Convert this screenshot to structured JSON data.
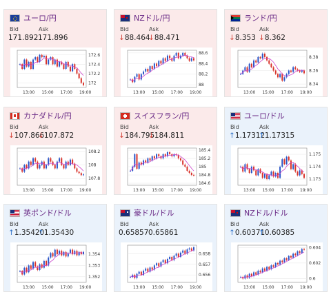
{
  "labels": {
    "bid": "Bid",
    "ask": "Ask"
  },
  "colors": {
    "up_candle": "#2a56c8",
    "down_candle": "#d8332b",
    "ma_line": "#cc44cc",
    "down_card": "#fbeaea",
    "up_card": "#eaf2fb"
  },
  "cards": [
    {
      "pair": "ユーロ/円",
      "flag": "eu-flag",
      "direction": "down",
      "bid_arrow": "",
      "bid": "171.892",
      "ask_arrow": "",
      "ask": "171.896",
      "chart_data": {
        "type": "candlestick",
        "yticks": [
          "172.6",
          "172.4",
          "172.2",
          "172"
        ],
        "ylim": [
          171.9,
          172.7
        ],
        "xticks": [
          "13:00",
          "15:00",
          "17:00",
          "19:00"
        ],
        "close": [
          172.4,
          172.3,
          172.5,
          172.35,
          172.45,
          172.3,
          172.5,
          172.55,
          172.45,
          172.6,
          172.55,
          172.58,
          172.4,
          172.5,
          172.55,
          172.4,
          172.5,
          172.35,
          172.45,
          172.4,
          172.3,
          172.45,
          172.35,
          172.25,
          172.4,
          172.3,
          172.2,
          172.1,
          172.0,
          171.95
        ]
      }
    },
    {
      "pair": "NZドル/円",
      "flag": "nz-flag",
      "direction": "down",
      "bid_arrow": "↓",
      "bid": "88.464",
      "ask_arrow": "↓",
      "ask": "88.471",
      "chart_data": {
        "type": "candlestick",
        "yticks": [
          "88.6",
          "88.4",
          "88.2",
          "88"
        ],
        "ylim": [
          87.95,
          88.65
        ],
        "xticks": [
          "13:00",
          "15:00",
          "17:00",
          "19:00"
        ],
        "close": [
          88.1,
          88.05,
          88.15,
          88.2,
          88.1,
          88.2,
          88.25,
          88.3,
          88.25,
          88.35,
          88.3,
          88.4,
          88.35,
          88.45,
          88.4,
          88.5,
          88.45,
          88.55,
          88.5,
          88.45,
          88.55,
          88.6,
          88.5,
          88.55,
          88.6,
          88.55,
          88.5,
          88.45,
          88.5,
          88.46
        ]
      }
    },
    {
      "pair": "ランド/円",
      "flag": "za-flag",
      "direction": "down",
      "bid_arrow": "↓",
      "bid": "8.353",
      "ask_arrow": "↓",
      "ask": "8.362",
      "chart_data": {
        "type": "candlestick",
        "yticks": [
          "8.38",
          "8.36",
          "8.34"
        ],
        "ylim": [
          8.335,
          8.39
        ],
        "xticks": [
          "13:00",
          "15:00",
          "17:00",
          "19:00"
        ],
        "close": [
          8.355,
          8.36,
          8.365,
          8.358,
          8.37,
          8.365,
          8.375,
          8.372,
          8.38,
          8.378,
          8.385,
          8.38,
          8.375,
          8.37,
          8.365,
          8.36,
          8.355,
          8.35,
          8.355,
          8.345,
          8.35,
          8.355,
          8.36,
          8.358,
          8.365,
          8.362,
          8.36,
          8.358,
          8.36,
          8.356
        ]
      }
    },
    {
      "pair": "カナダドル/円",
      "flag": "ca-flag",
      "direction": "down",
      "bid_arrow": "↓",
      "bid": "107.866",
      "ask_arrow": "↓",
      "ask": "107.872",
      "chart_data": {
        "type": "candlestick",
        "yticks": [
          "108.2",
          "108",
          "107.8"
        ],
        "ylim": [
          107.7,
          108.25
        ],
        "xticks": [
          "13:00",
          "15:00",
          "17:00",
          "19:00"
        ],
        "close": [
          107.95,
          107.9,
          108.0,
          107.95,
          108.05,
          108.0,
          108.1,
          108.05,
          107.95,
          108.0,
          108.05,
          107.95,
          108.0,
          108.1,
          108.05,
          108.0,
          107.95,
          108.05,
          108.1,
          108.0,
          107.95,
          108.05,
          108.0,
          108.08,
          108.02,
          107.95,
          107.9,
          107.88,
          107.85,
          107.86
        ]
      }
    },
    {
      "pair": "スイスフラン/円",
      "flag": "ch-flag",
      "direction": "down",
      "bid_arrow": "↓",
      "bid": "184.795",
      "ask_arrow": "↓",
      "ask": "184.811",
      "chart_data": {
        "type": "candlestick",
        "yticks": [
          "185.4",
          "185.2",
          "185",
          "184.8",
          "184.6"
        ],
        "ylim": [
          184.55,
          185.45
        ],
        "xticks": [
          "13:00",
          "15:00",
          "17:00",
          "19:00"
        ],
        "close": [
          184.9,
          185.0,
          185.3,
          184.95,
          185.1,
          185.05,
          185.15,
          185.1,
          185.2,
          185.15,
          185.25,
          185.2,
          185.3,
          185.25,
          185.2,
          185.3,
          185.25,
          185.35,
          185.3,
          185.25,
          185.3,
          185.28,
          185.2,
          185.15,
          185.05,
          185.0,
          184.9,
          184.85,
          184.8,
          184.79
        ]
      }
    },
    {
      "pair": "ユーロ/ドル",
      "flag": "us-flag",
      "direction": "up",
      "bid_arrow": "↑",
      "bid": "1.17312",
      "ask_arrow": "↑",
      "ask": "1.17315",
      "chart_data": {
        "type": "candlestick",
        "yticks": [
          "1.175",
          "1.174",
          "1.173"
        ],
        "ylim": [
          1.1725,
          1.1755
        ],
        "xticks": [
          "13:00",
          "15:00",
          "17:00",
          "19:00"
        ],
        "close": [
          1.174,
          1.1736,
          1.1742,
          1.1738,
          1.1735,
          1.174,
          1.1737,
          1.1733,
          1.1738,
          1.1735,
          1.1731,
          1.1734,
          1.173,
          1.1733,
          1.1736,
          1.1732,
          1.1735,
          1.1731,
          1.174,
          1.1746,
          1.1742,
          1.1748,
          1.1745,
          1.1738,
          1.1742,
          1.1736,
          1.1733,
          1.1737,
          1.1734,
          1.1731
        ]
      }
    },
    {
      "pair": "英ポンド/ドル",
      "flag": "us-flag",
      "direction": "up",
      "bid_arrow": "↑",
      "bid": "1.35420",
      "ask_arrow": "↑",
      "ask": "1.35430",
      "chart_data": {
        "type": "candlestick",
        "yticks": [
          "1.354",
          "1.353",
          "1.352"
        ],
        "ylim": [
          1.3515,
          1.3548
        ],
        "xticks": [
          "13:00",
          "15:00",
          "17:00",
          "19:00"
        ],
        "close": [
          1.3525,
          1.3522,
          1.3528,
          1.3524,
          1.353,
          1.3527,
          1.3533,
          1.3529,
          1.3526,
          1.3531,
          1.3528,
          1.3534,
          1.353,
          1.3537,
          1.3541,
          1.3538,
          1.3544,
          1.354,
          1.3543,
          1.3539,
          1.3542,
          1.3538,
          1.3541,
          1.3544,
          1.354,
          1.3543,
          1.3539,
          1.3542,
          1.354,
          1.3542
        ]
      }
    },
    {
      "pair": "豪ドル/ドル",
      "flag": "au-flag",
      "direction": "up",
      "bid_arrow": "",
      "bid": "0.65857",
      "ask_arrow": "",
      "ask": "0.65861",
      "chart_data": {
        "type": "candlestick",
        "yticks": [
          "0.658",
          "0.657",
          "0.656"
        ],
        "ylim": [
          0.6553,
          0.6588
        ],
        "xticks": [
          "13:00",
          "15:00",
          "17:00",
          "19:00"
        ],
        "close": [
          0.6558,
          0.656,
          0.6557,
          0.6561,
          0.6563,
          0.656,
          0.6564,
          0.6566,
          0.6563,
          0.6567,
          0.6565,
          0.6569,
          0.6571,
          0.6568,
          0.6572,
          0.6574,
          0.6571,
          0.6575,
          0.6577,
          0.6574,
          0.6578,
          0.658,
          0.6577,
          0.6581,
          0.6583,
          0.658,
          0.6584,
          0.6585,
          0.6583,
          0.6586
        ]
      }
    },
    {
      "pair": "NZドル/ドル",
      "flag": "nz-flag",
      "direction": "up",
      "bid_arrow": "↑",
      "bid": "0.60371",
      "ask_arrow": "↑",
      "ask": "0.60385",
      "chart_data": {
        "type": "candlestick",
        "yticks": [
          "0.604",
          "0.602",
          "0.6"
        ],
        "ylim": [
          0.5995,
          0.6043
        ],
        "xticks": [
          "13:00",
          "15:00",
          "17:00",
          "19:00"
        ],
        "close": [
          0.6002,
          0.6,
          0.6004,
          0.6001,
          0.6006,
          0.6003,
          0.6008,
          0.6005,
          0.601,
          0.6008,
          0.6013,
          0.601,
          0.6015,
          0.6012,
          0.6017,
          0.6015,
          0.602,
          0.6018,
          0.6023,
          0.6021,
          0.6026,
          0.6024,
          0.6029,
          0.6027,
          0.6032,
          0.603,
          0.6035,
          0.6033,
          0.6038,
          0.6037
        ]
      }
    }
  ]
}
